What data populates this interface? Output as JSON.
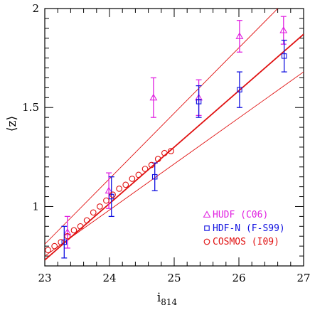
{
  "chart_data": {
    "type": "scatter",
    "xlabel": "i",
    "xlabel_sub": "814",
    "ylabel": "⟨z⟩",
    "xlim": [
      23.0,
      27.0
    ],
    "ylim": [
      0.7,
      2.0
    ],
    "xticks": [
      23,
      24,
      25,
      26,
      27
    ],
    "yticks": [
      1,
      1.5,
      2
    ],
    "xtick_labels": [
      "23",
      "24",
      "25",
      "26",
      "27"
    ],
    "ytick_labels": [
      "1",
      "1.5",
      "2"
    ],
    "grid": false,
    "legend_position": "bottom-right",
    "series": [
      {
        "name": "HUDF (C06)",
        "marker": "triangle",
        "color": "#e020e0",
        "x": [
          23.35,
          23.99,
          24.68,
          25.38,
          26.01,
          26.69
        ],
        "y": [
          0.87,
          1.08,
          1.55,
          1.55,
          1.86,
          1.89
        ],
        "yerr": [
          0.08,
          0.09,
          0.1,
          0.09,
          0.08,
          0.07
        ]
      },
      {
        "name": "HDF-N (F-S99)",
        "marker": "square",
        "color": "#1010e0",
        "x": [
          23.3,
          24.03,
          24.7,
          25.38,
          26.01,
          26.7
        ],
        "y": [
          0.82,
          1.05,
          1.15,
          1.53,
          1.59,
          1.76
        ],
        "yerr": [
          0.08,
          0.1,
          0.07,
          0.08,
          0.09,
          0.08
        ]
      },
      {
        "name": "COSMOS (I09)",
        "marker": "circle",
        "color": "#e01010",
        "x": [
          23.05,
          23.15,
          23.25,
          23.35,
          23.45,
          23.55,
          23.65,
          23.75,
          23.85,
          23.95,
          24.05,
          24.15,
          24.25,
          24.35,
          24.45,
          24.55,
          24.65,
          24.75,
          24.85,
          24.95
        ],
        "y": [
          0.78,
          0.8,
          0.82,
          0.85,
          0.88,
          0.9,
          0.93,
          0.97,
          1.0,
          1.03,
          1.06,
          1.09,
          1.11,
          1.14,
          1.16,
          1.19,
          1.21,
          1.24,
          1.27,
          1.28
        ]
      }
    ],
    "lines": [
      {
        "color": "#e01010",
        "width": 1.8,
        "points": [
          [
            23.0,
            0.73
          ],
          [
            27.0,
            1.87
          ]
        ]
      },
      {
        "color": "#e01010",
        "width": 0.9,
        "points": [
          [
            23.0,
            0.75
          ],
          [
            27.0,
            1.68
          ]
        ]
      },
      {
        "color": "#e01010",
        "width": 0.9,
        "points": [
          [
            23.0,
            0.81
          ],
          [
            26.6,
            2.0
          ]
        ]
      }
    ]
  }
}
